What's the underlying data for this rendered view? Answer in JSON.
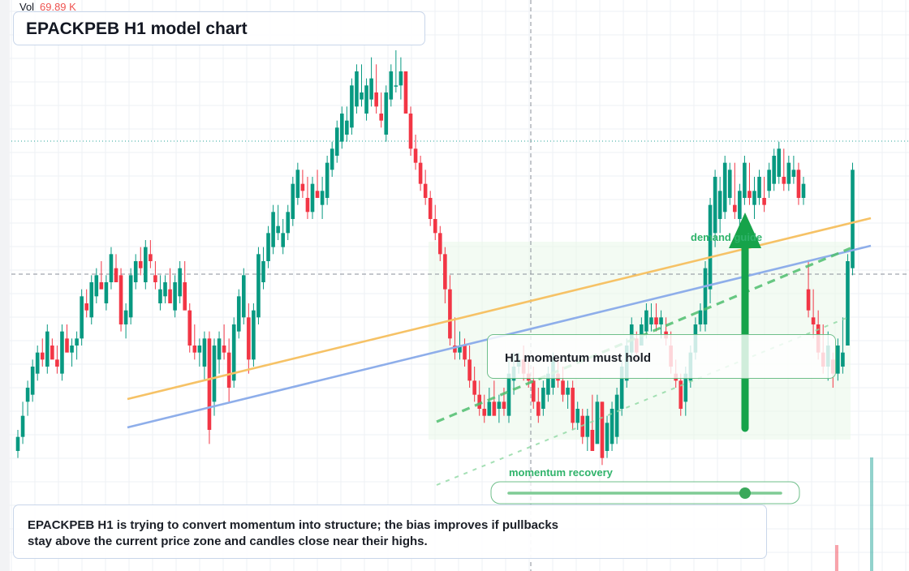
{
  "header": {
    "vol_label": "Vol",
    "vol_value": "69.89 K"
  },
  "title": "EPACKPEB H1 model chart",
  "callout": "H1 momentum must hold",
  "labels": {
    "demand": "demand guide",
    "momentum": "momentum recovery"
  },
  "note": {
    "line1": "EPACKPEB H1 is trying to convert momentum into structure; the bias improves if pullbacks",
    "line2": "stay above the current price zone and candles close near their highs."
  },
  "colors": {
    "up": "#26a69a",
    "up_candle": "#089981",
    "down": "#f23645",
    "orange_line": "#f6c266",
    "blue_line": "#8eaeea",
    "green_accent": "#16a34a",
    "zone": "#e9f7ea"
  },
  "chart_data": {
    "type": "candlestick",
    "timeframe": "H1",
    "symbol": "EPACKPEB",
    "candles": [
      [
        36,
        40,
        37,
        39
      ],
      [
        38,
        44,
        39,
        42
      ],
      [
        42,
        47,
        44,
        46
      ],
      [
        44,
        50,
        45,
        49
      ],
      [
        47,
        52,
        48,
        51
      ],
      [
        49,
        53,
        51,
        50
      ],
      [
        48,
        55,
        49,
        54
      ],
      [
        51,
        53,
        52,
        50
      ],
      [
        48,
        52,
        50,
        49
      ],
      [
        47,
        55,
        48,
        54
      ],
      [
        52,
        55,
        53,
        51
      ],
      [
        49,
        53,
        51,
        52
      ],
      [
        50,
        54,
        52,
        53
      ],
      [
        52,
        60,
        53,
        59
      ],
      [
        56,
        60,
        58,
        57
      ],
      [
        55,
        62,
        56,
        61
      ],
      [
        58,
        63,
        59,
        62
      ],
      [
        60,
        64,
        61,
        60
      ],
      [
        57,
        62,
        58,
        61
      ],
      [
        60,
        66,
        61,
        65
      ],
      [
        62,
        65,
        63,
        61
      ],
      [
        54,
        63,
        62,
        55
      ],
      [
        53,
        58,
        55,
        57
      ],
      [
        55,
        63,
        56,
        62
      ],
      [
        60,
        65,
        61,
        64
      ],
      [
        62,
        66,
        64,
        63
      ],
      [
        60,
        67,
        61,
        66
      ],
      [
        63,
        67,
        65,
        64
      ],
      [
        60,
        64,
        62,
        61
      ],
      [
        57,
        62,
        58,
        60
      ],
      [
        58,
        62,
        59,
        61
      ],
      [
        59,
        63,
        60,
        58
      ],
      [
        56,
        62,
        57,
        61
      ],
      [
        58,
        64,
        59,
        63
      ],
      [
        60,
        64,
        61,
        57
      ],
      [
        51,
        58,
        57,
        52
      ],
      [
        50,
        55,
        52,
        51
      ],
      [
        49,
        53,
        51,
        52
      ],
      [
        47,
        54,
        49,
        53
      ],
      [
        38,
        54,
        53,
        40
      ],
      [
        42,
        53,
        44,
        52
      ],
      [
        48,
        54,
        50,
        53
      ],
      [
        50,
        55,
        52,
        51
      ],
      [
        44,
        53,
        51,
        46
      ],
      [
        46,
        56,
        47,
        55
      ],
      [
        53,
        60,
        54,
        59
      ],
      [
        55,
        63,
        56,
        62
      ],
      [
        48,
        58,
        56,
        50
      ],
      [
        49,
        58,
        50,
        57
      ],
      [
        55,
        66,
        56,
        65
      ],
      [
        60,
        66,
        61,
        64
      ],
      [
        63,
        69,
        64,
        68
      ],
      [
        65,
        72,
        66,
        71
      ],
      [
        67,
        72,
        68,
        69
      ],
      [
        65,
        70,
        66,
        68
      ],
      [
        67,
        72,
        68,
        71
      ],
      [
        69,
        76,
        70,
        75
      ],
      [
        72,
        78,
        73,
        77
      ],
      [
        73,
        77,
        75,
        74
      ],
      [
        70,
        76,
        73,
        71
      ],
      [
        70,
        76,
        71,
        75
      ],
      [
        73,
        77,
        74,
        73
      ],
      [
        70,
        76,
        72,
        74
      ],
      [
        72,
        79,
        73,
        78
      ],
      [
        76,
        81,
        77,
        80
      ],
      [
        78,
        84,
        79,
        83
      ],
      [
        80,
        86,
        81,
        85
      ],
      [
        81,
        86,
        82,
        84
      ],
      [
        82,
        90,
        83,
        89
      ],
      [
        85,
        92,
        86,
        91
      ],
      [
        86,
        92,
        87,
        88
      ],
      [
        84,
        90,
        85,
        89
      ],
      [
        86,
        93,
        87,
        90
      ],
      [
        85,
        92,
        88,
        86
      ],
      [
        83,
        88,
        85,
        84
      ],
      [
        81,
        89,
        82,
        88
      ],
      [
        86,
        92,
        87,
        91
      ],
      [
        88,
        94,
        89,
        89
      ],
      [
        87,
        93,
        89,
        91
      ],
      [
        85,
        91,
        91,
        85
      ],
      [
        79,
        86,
        85,
        80
      ],
      [
        77,
        82,
        80,
        78
      ],
      [
        74,
        79,
        78,
        75
      ],
      [
        72,
        77,
        75,
        73
      ],
      [
        69,
        74,
        73,
        70
      ],
      [
        67,
        72,
        70,
        68
      ],
      [
        64,
        69,
        68,
        65
      ],
      [
        58,
        66,
        65,
        60
      ],
      [
        52,
        62,
        60,
        53
      ],
      [
        50,
        56,
        52,
        51
      ],
      [
        50,
        54,
        51,
        52
      ],
      [
        49,
        53,
        52,
        50
      ],
      [
        46,
        52,
        50,
        47
      ],
      [
        44,
        49,
        47,
        45
      ],
      [
        42,
        47,
        45,
        43
      ],
      [
        41,
        45,
        43,
        42
      ],
      [
        42,
        46,
        42,
        44
      ],
      [
        43,
        47,
        44,
        42
      ],
      [
        41,
        45,
        43,
        44
      ],
      [
        42,
        46,
        44,
        43
      ],
      [
        41,
        50,
        42,
        48
      ],
      [
        45,
        51,
        47,
        49
      ],
      [
        48,
        51,
        49,
        50
      ],
      [
        47,
        52,
        50,
        48
      ],
      [
        46,
        50,
        48,
        47
      ],
      [
        43,
        49,
        47,
        44
      ],
      [
        41,
        46,
        44,
        42
      ],
      [
        42,
        47,
        43,
        46
      ],
      [
        44,
        49,
        45,
        48
      ],
      [
        45,
        51,
        46,
        50
      ],
      [
        46,
        50,
        48,
        47
      ],
      [
        44,
        49,
        47,
        45
      ],
      [
        43,
        47,
        45,
        46
      ],
      [
        40,
        47,
        46,
        41
      ],
      [
        40,
        44,
        41,
        43
      ],
      [
        38,
        43,
        42,
        39
      ],
      [
        37,
        43,
        39,
        42
      ],
      [
        38,
        45,
        40,
        37
      ],
      [
        39,
        45,
        38,
        44
      ],
      [
        35,
        44,
        44,
        36
      ],
      [
        36,
        42,
        37,
        41
      ],
      [
        37,
        44,
        38,
        43
      ],
      [
        38,
        46,
        39,
        45
      ],
      [
        42,
        50,
        43,
        49
      ],
      [
        46,
        53,
        47,
        52
      ],
      [
        50,
        56,
        51,
        55
      ],
      [
        50,
        54,
        53,
        51
      ],
      [
        52,
        56,
        52,
        55
      ],
      [
        53,
        58,
        54,
        57
      ],
      [
        54,
        58,
        55,
        56
      ],
      [
        54,
        58,
        56,
        55
      ],
      [
        53,
        57,
        55,
        56
      ],
      [
        52,
        56,
        54,
        53
      ],
      [
        48,
        54,
        52,
        49
      ],
      [
        46,
        50,
        48,
        47
      ],
      [
        42,
        48,
        47,
        43
      ],
      [
        42,
        49,
        44,
        48
      ],
      [
        46,
        52,
        47,
        51
      ],
      [
        50,
        56,
        51,
        55
      ],
      [
        54,
        58,
        55,
        57
      ],
      [
        54,
        64,
        55,
        63
      ],
      [
        58,
        73,
        60,
        72
      ],
      [
        66,
        77,
        68,
        76
      ],
      [
        68,
        76,
        70,
        74
      ],
      [
        70,
        79,
        71,
        78
      ],
      [
        72,
        78,
        73,
        77
      ],
      [
        70,
        78,
        72,
        71
      ],
      [
        69,
        75,
        70,
        74
      ],
      [
        72,
        79,
        73,
        78
      ],
      [
        72,
        78,
        74,
        73
      ],
      [
        70,
        76,
        72,
        74
      ],
      [
        72,
        77,
        73,
        76
      ],
      [
        71,
        76,
        73,
        72
      ],
      [
        73,
        78,
        74,
        77
      ],
      [
        74,
        80,
        75,
        79
      ],
      [
        75,
        81,
        76,
        80
      ],
      [
        74,
        80,
        76,
        75
      ],
      [
        74,
        79,
        75,
        78
      ],
      [
        75,
        79,
        76,
        77
      ],
      [
        72,
        78,
        77,
        73
      ],
      [
        72,
        76,
        73,
        75
      ],
      [
        56,
        64,
        60,
        57
      ],
      [
        53,
        60,
        56,
        55
      ],
      [
        50,
        57,
        55,
        51
      ],
      [
        48,
        55,
        51,
        49
      ],
      [
        47,
        54,
        49,
        52
      ],
      [
        46,
        51,
        50,
        48
      ],
      [
        47,
        53,
        48,
        52
      ],
      [
        48,
        56,
        49,
        51
      ],
      [
        52,
        65,
        52,
        64
      ],
      [
        62,
        78,
        63,
        77
      ]
    ],
    "volume": [
      [
        0.3,
        1
      ],
      [
        0.2,
        0
      ],
      [
        0.2,
        1
      ],
      [
        0.3,
        0
      ],
      [
        0.2,
        1
      ],
      [
        0.35,
        1
      ],
      [
        0.4,
        0
      ],
      [
        0.2,
        1
      ],
      [
        0.3,
        0
      ],
      [
        0.25,
        1
      ],
      [
        0.3,
        0
      ],
      [
        0.2,
        1
      ]
    ],
    "lines": {
      "orange": {
        "from": [
          0,
          48
        ],
        "to": [
          170,
          69
        ]
      },
      "blue": {
        "from": [
          0,
          45
        ],
        "to": [
          170,
          67
        ]
      }
    }
  }
}
